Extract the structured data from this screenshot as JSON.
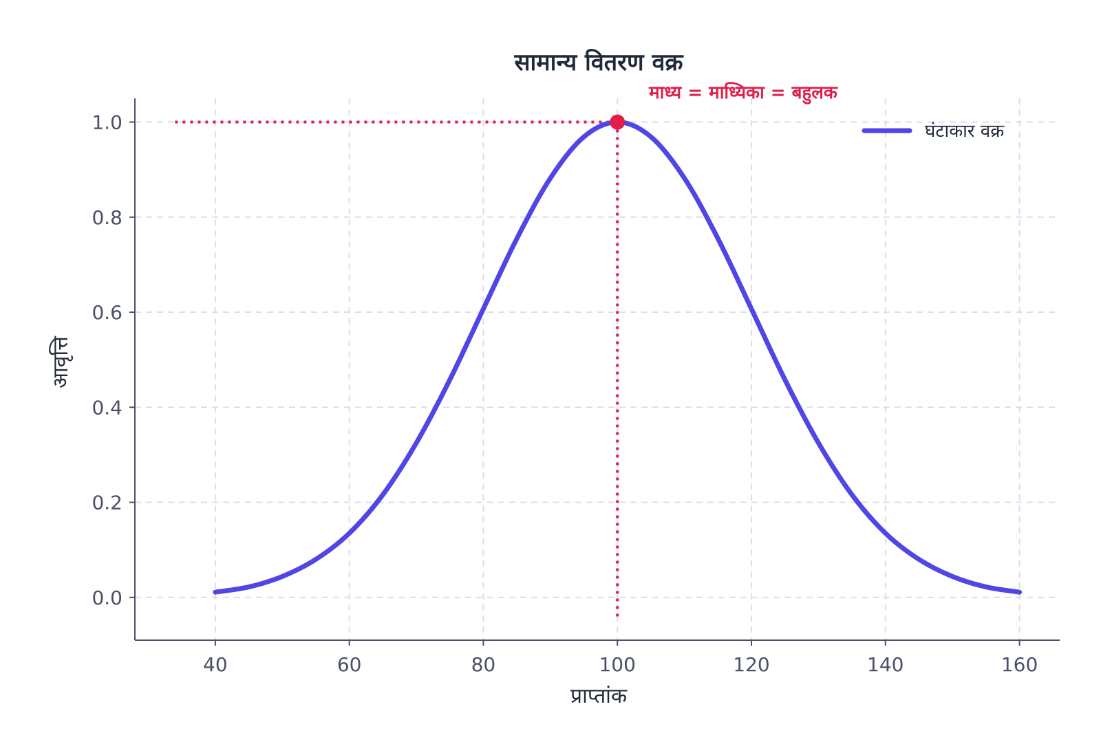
{
  "chart_data": {
    "type": "line",
    "title": "सामान्य वितरण वक्र",
    "xlabel": "प्राप्तांक",
    "ylabel": "आवृत्ति",
    "xlim": [
      28,
      166
    ],
    "ylim": [
      -0.09,
      1.05
    ],
    "xticks": [
      40,
      60,
      80,
      100,
      120,
      140,
      160
    ],
    "yticks": [
      0.0,
      0.2,
      0.4,
      0.6,
      0.8,
      1.0
    ],
    "xtick_labels": [
      "40",
      "60",
      "80",
      "100",
      "120",
      "140",
      "160"
    ],
    "ytick_labels": [
      "0.0",
      "0.2",
      "0.4",
      "0.6",
      "0.8",
      "1.0"
    ],
    "grid": true,
    "legend_position": "top-right",
    "series": [
      {
        "name": "घंटाकार वक्र",
        "color": "#4f46e5",
        "x": [
          40,
          45,
          50,
          55,
          60,
          65,
          70,
          75,
          80,
          85,
          90,
          95,
          100,
          105,
          110,
          115,
          120,
          125,
          130,
          135,
          140,
          145,
          150,
          155,
          160
        ],
        "y": [
          0.011,
          0.022,
          0.044,
          0.08,
          0.135,
          0.216,
          0.325,
          0.458,
          0.607,
          0.755,
          0.882,
          0.969,
          1.0,
          0.969,
          0.882,
          0.755,
          0.607,
          0.458,
          0.325,
          0.216,
          0.135,
          0.08,
          0.044,
          0.022,
          0.011
        ]
      }
    ],
    "peak": {
      "x": 100,
      "y": 1.0,
      "label": "माध्य = माध्यिका = बहुलक",
      "color": "#e11d48"
    },
    "reference_lines": {
      "horizontal_from_x": 34,
      "vertical_to_y": -0.04
    },
    "colors": {
      "axis": "#4a5068",
      "grid": "#dddcf0",
      "line": "#4f46e5",
      "accent": "#e11d48"
    }
  }
}
